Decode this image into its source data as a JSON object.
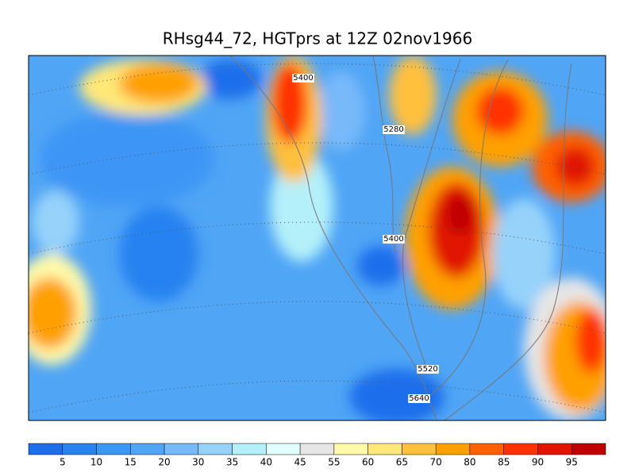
{
  "title": "RHsg44_72, HGTprs at 12Z  02nov1966",
  "contour_labels": [
    5400,
    5280,
    5400,
    5520,
    5640
  ],
  "colorbar": {
    "labels": [
      5,
      10,
      15,
      20,
      30,
      35,
      40,
      45,
      55,
      60,
      65,
      70,
      80,
      85,
      90,
      95
    ],
    "colors": [
      "#1e6eeb",
      "#2882f0",
      "#3c96f5",
      "#50a5f5",
      "#78b9fa",
      "#96d2fa",
      "#b4f0fa",
      "#e1ffff",
      "#e6e6e6",
      "#fffaaa",
      "#ffe878",
      "#ffc03c",
      "#ffa000",
      "#ff6000",
      "#ff3200",
      "#e11400",
      "#c00000"
    ]
  }
}
